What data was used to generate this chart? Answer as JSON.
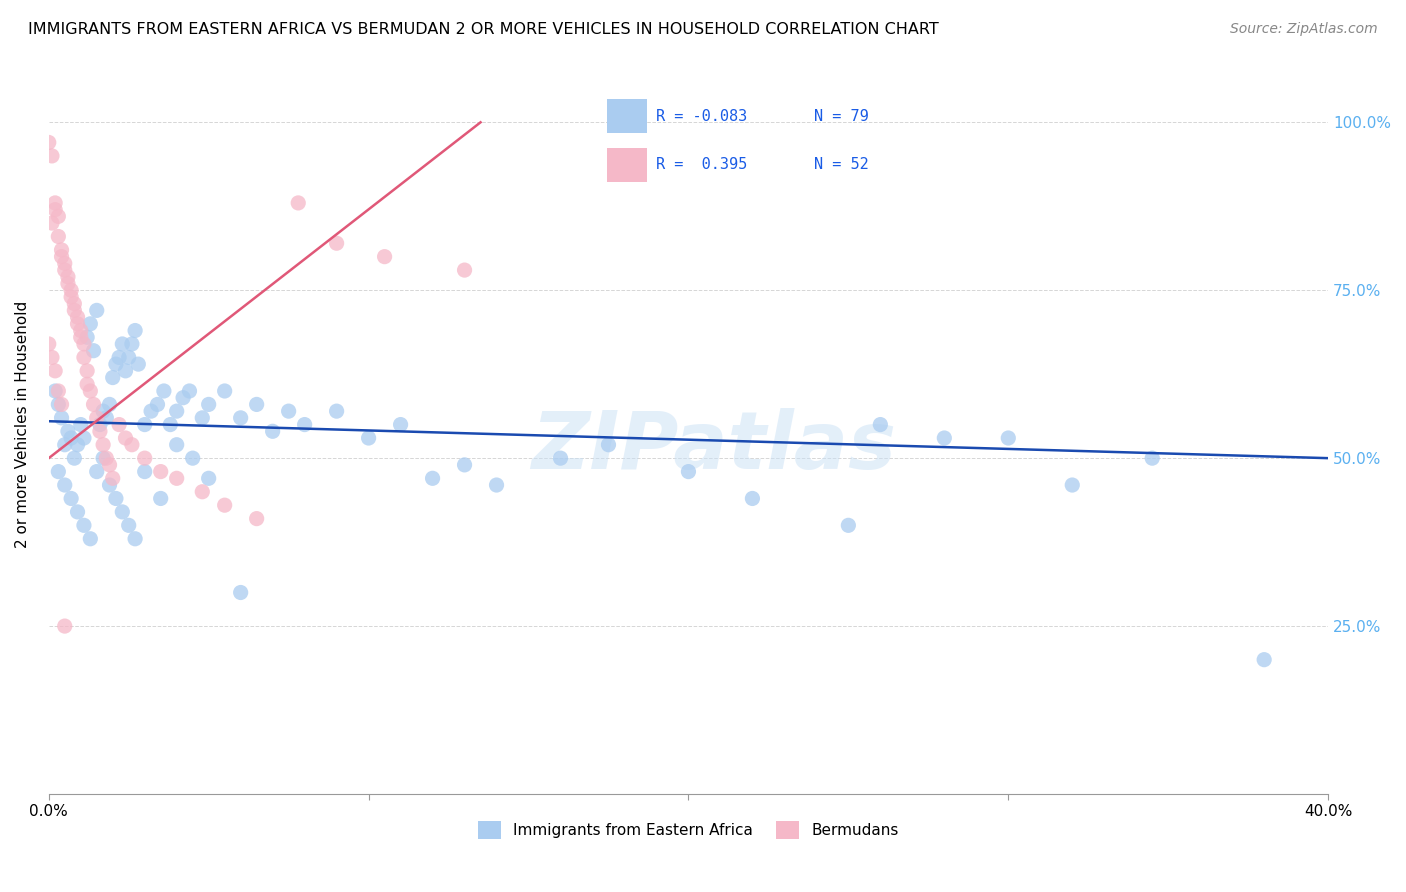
{
  "title": "IMMIGRANTS FROM EASTERN AFRICA VS BERMUDAN 2 OR MORE VEHICLES IN HOUSEHOLD CORRELATION CHART",
  "source": "Source: ZipAtlas.com",
  "ylabel": "2 or more Vehicles in Household",
  "legend_label_blue": "Immigrants from Eastern Africa",
  "legend_label_pink": "Bermudans",
  "blue_color": "#aaccf0",
  "pink_color": "#f5b8c8",
  "blue_line_color": "#1a4ab0",
  "pink_line_color": "#e05878",
  "watermark": "ZIPatlas",
  "right_tick_color": "#5bb0f0",
  "xlim": [
    0.0,
    0.4
  ],
  "ylim": [
    0.0,
    1.1
  ],
  "blue_x": [
    0.002,
    0.003,
    0.004,
    0.005,
    0.006,
    0.007,
    0.008,
    0.009,
    0.01,
    0.011,
    0.012,
    0.013,
    0.014,
    0.015,
    0.016,
    0.017,
    0.018,
    0.019,
    0.02,
    0.021,
    0.022,
    0.023,
    0.024,
    0.025,
    0.026,
    0.027,
    0.028,
    0.03,
    0.032,
    0.034,
    0.036,
    0.038,
    0.04,
    0.042,
    0.044,
    0.048,
    0.05,
    0.055,
    0.06,
    0.065,
    0.07,
    0.075,
    0.08,
    0.09,
    0.1,
    0.11,
    0.12,
    0.13,
    0.14,
    0.16,
    0.175,
    0.2,
    0.22,
    0.25,
    0.26,
    0.28,
    0.3,
    0.32,
    0.345,
    0.38,
    0.003,
    0.005,
    0.007,
    0.009,
    0.011,
    0.013,
    0.015,
    0.017,
    0.019,
    0.021,
    0.023,
    0.025,
    0.027,
    0.03,
    0.035,
    0.04,
    0.045,
    0.05,
    0.06
  ],
  "blue_y": [
    0.6,
    0.58,
    0.56,
    0.52,
    0.54,
    0.53,
    0.5,
    0.52,
    0.55,
    0.53,
    0.68,
    0.7,
    0.66,
    0.72,
    0.55,
    0.57,
    0.56,
    0.58,
    0.62,
    0.64,
    0.65,
    0.67,
    0.63,
    0.65,
    0.67,
    0.69,
    0.64,
    0.55,
    0.57,
    0.58,
    0.6,
    0.55,
    0.57,
    0.59,
    0.6,
    0.56,
    0.58,
    0.6,
    0.56,
    0.58,
    0.54,
    0.57,
    0.55,
    0.57,
    0.53,
    0.55,
    0.47,
    0.49,
    0.46,
    0.5,
    0.52,
    0.48,
    0.44,
    0.4,
    0.55,
    0.53,
    0.53,
    0.46,
    0.5,
    0.2,
    0.48,
    0.46,
    0.44,
    0.42,
    0.4,
    0.38,
    0.48,
    0.5,
    0.46,
    0.44,
    0.42,
    0.4,
    0.38,
    0.48,
    0.44,
    0.52,
    0.5,
    0.47,
    0.3
  ],
  "pink_x": [
    0.0,
    0.001,
    0.001,
    0.002,
    0.002,
    0.003,
    0.003,
    0.004,
    0.004,
    0.005,
    0.005,
    0.006,
    0.006,
    0.007,
    0.007,
    0.008,
    0.008,
    0.009,
    0.009,
    0.01,
    0.01,
    0.011,
    0.011,
    0.012,
    0.012,
    0.013,
    0.014,
    0.015,
    0.016,
    0.017,
    0.018,
    0.019,
    0.02,
    0.022,
    0.024,
    0.026,
    0.03,
    0.035,
    0.04,
    0.048,
    0.055,
    0.065,
    0.078,
    0.09,
    0.105,
    0.13,
    0.0,
    0.001,
    0.002,
    0.003,
    0.004,
    0.005
  ],
  "pink_y": [
    0.97,
    0.95,
    0.85,
    0.87,
    0.88,
    0.86,
    0.83,
    0.81,
    0.8,
    0.79,
    0.78,
    0.77,
    0.76,
    0.75,
    0.74,
    0.73,
    0.72,
    0.71,
    0.7,
    0.69,
    0.68,
    0.67,
    0.65,
    0.63,
    0.61,
    0.6,
    0.58,
    0.56,
    0.54,
    0.52,
    0.5,
    0.49,
    0.47,
    0.55,
    0.53,
    0.52,
    0.5,
    0.48,
    0.47,
    0.45,
    0.43,
    0.41,
    0.88,
    0.82,
    0.8,
    0.78,
    0.67,
    0.65,
    0.63,
    0.6,
    0.58,
    0.25
  ],
  "blue_line_x": [
    0.0,
    0.4
  ],
  "blue_line_y": [
    0.555,
    0.5
  ],
  "pink_line_x": [
    0.0,
    0.135
  ],
  "pink_line_y": [
    0.5,
    1.0
  ]
}
